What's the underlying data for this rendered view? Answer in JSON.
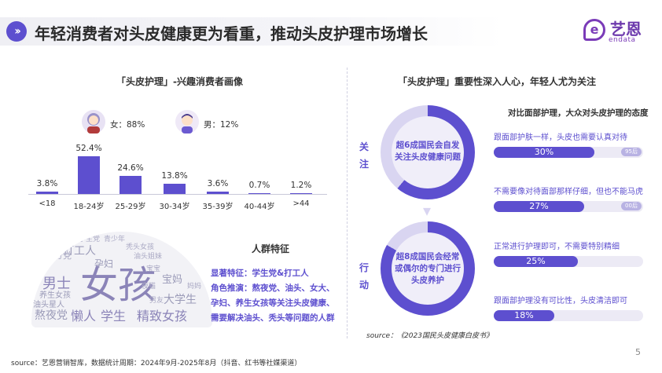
{
  "header": {
    "title": "年轻消费者对头皮健康更为看重，推动头皮护理市场增长",
    "logo_name": "艺恩",
    "logo_sub": "endata",
    "logo_mark": "e"
  },
  "left": {
    "section_title": "「头皮护理」-兴趣消费者画像",
    "gender": {
      "female": "女：88%",
      "male": "男：12%"
    },
    "age_chart": {
      "chart_data": {
        "type": "bar",
        "categories": [
          "<18",
          "18-24岁",
          "25-29岁",
          "30-34岁",
          "35-39岁",
          "40-44岁",
          ">44"
        ],
        "values": [
          3.8,
          52.4,
          24.6,
          13.8,
          3.6,
          0.7,
          1.2
        ],
        "value_labels": [
          "3.8%",
          "52.4%",
          "24.6%",
          "13.8%",
          "3.6%",
          "0.7%",
          "1.2%"
        ]
      }
    },
    "word_cloud": [
      "女孩",
      "男士",
      "懒人",
      "学生",
      "熬夜党",
      "精致女孩",
      "打工人",
      "孕妇",
      "宝妈",
      "大学生",
      "养生女孩",
      "油头星人",
      "成分党",
      "青少年",
      "油头姐妹",
      "宝宝",
      "秃头女孩",
      "夜猫",
      "妈妈",
      "男友",
      "学生党"
    ],
    "crowd": {
      "title": "人群特征",
      "traits": [
        "显著特征：学生党&打工人",
        "角色推演：熬夜党、油头、女大、",
        "孕妇、养生女孩等关注头皮健康、",
        "需要解决油头、秃头等问题的人群"
      ]
    }
  },
  "right": {
    "section_title": "「头皮护理」重要性深入人心，年轻人尤为关注",
    "label_top": "关注",
    "label_bottom": "行动",
    "ring_top": [
      "超6成国民会自发",
      "关注头皮健康问题"
    ],
    "ring_bottom": [
      "超8成国民会经常",
      "或偶尔的专门进行",
      "头皮养护"
    ],
    "attitude_title": "对比面部护理，大众对头皮护理的态度",
    "items": [
      {
        "text": "跟面部护肤一样，头皮也需要认真对待",
        "value": 30,
        "label": "30%",
        "tag": "95后"
      },
      {
        "text": "不需要像对待面部那样仔细，但也不能马虎",
        "value": 27,
        "label": "27%",
        "tag": "00后"
      },
      {
        "text": "正常进行护理即可，不需要特别精细",
        "value": 25,
        "label": "25%",
        "tag": ""
      },
      {
        "text": "跟面部护理没有可比性，头皮清洁即可",
        "value": 18,
        "label": "18%",
        "tag": ""
      }
    ],
    "source": "source：《2023国民头皮健康白皮书》"
  },
  "footer": {
    "source": "source：艺恩营销智库，数据统计周期：2024年9月-2025年8月（抖音、红书等社媒渠道）",
    "page": "5"
  },
  "colors": {
    "accent": "#5d4fcf",
    "brand": "#6d3aad"
  }
}
